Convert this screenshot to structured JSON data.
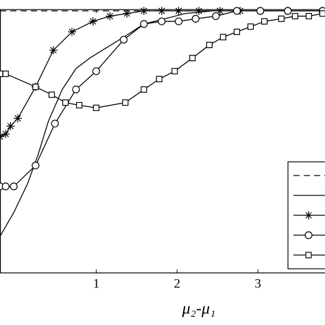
{
  "chart_data": {
    "type": "line",
    "xlabel": "μ₂-μ₁",
    "xlim": [
      -0.19,
      3.83
    ],
    "ylim": [
      0,
      1.005
    ],
    "xticks": [
      1,
      2,
      3
    ],
    "series": [
      {
        "color": "#000000",
        "style": "dashed",
        "marker": "none",
        "x": [
          -0.19,
          3.83
        ],
        "values": [
          1,
          1
        ]
      },
      {
        "color": "#000000",
        "style": "solid",
        "marker": "none",
        "x": [
          -0.19,
          -0.02,
          0.15,
          0.28,
          0.41,
          0.58,
          0.75,
          0.92,
          1.13,
          1.34,
          1.59,
          1.85,
          2.1,
          2.44,
          3.03,
          3.83
        ],
        "values": [
          0.14,
          0.23,
          0.34,
          0.45,
          0.58,
          0.7,
          0.78,
          0.82,
          0.86,
          0.9,
          0.95,
          0.97,
          0.99,
          1.0,
          1.0,
          1.0
        ]
      },
      {
        "color": "#000000",
        "style": "solid",
        "marker": "star",
        "x": [
          -0.19,
          -0.12,
          -0.06,
          0.03,
          0.25,
          0.47,
          0.7,
          0.96,
          1.17,
          1.38,
          1.59,
          1.81,
          2.02,
          2.27,
          2.53,
          2.78,
          3.03,
          3.37,
          3.8
        ],
        "values": [
          0.52,
          0.53,
          0.56,
          0.59,
          0.71,
          0.85,
          0.92,
          0.96,
          0.98,
          0.99,
          1.0,
          1.0,
          1.0,
          1.0,
          1.0,
          1.0,
          1.0,
          1.0,
          1.0
        ]
      },
      {
        "color": "#000000",
        "style": "solid",
        "marker": "circle",
        "x": [
          -0.19,
          -0.12,
          -0.02,
          0.25,
          0.49,
          0.75,
          1.0,
          1.34,
          1.59,
          1.81,
          2.02,
          2.23,
          2.48,
          2.74,
          3.03,
          3.37,
          3.8
        ],
        "values": [
          0.33,
          0.33,
          0.33,
          0.41,
          0.57,
          0.7,
          0.77,
          0.89,
          0.95,
          0.96,
          0.96,
          0.97,
          0.98,
          1.0,
          1.0,
          1.0,
          1.0
        ]
      },
      {
        "color": "#000000",
        "style": "solid",
        "marker": "square",
        "x": [
          -0.19,
          -0.12,
          0.25,
          0.45,
          0.62,
          0.79,
          1.0,
          1.36,
          1.59,
          1.78,
          1.97,
          2.19,
          2.4,
          2.57,
          2.74,
          2.91,
          3.08,
          3.29,
          3.46,
          3.63,
          3.8
        ],
        "values": [
          0.76,
          0.76,
          0.71,
          0.68,
          0.65,
          0.64,
          0.63,
          0.65,
          0.7,
          0.74,
          0.77,
          0.82,
          0.87,
          0.9,
          0.92,
          0.94,
          0.96,
          0.97,
          0.98,
          0.98,
          0.99
        ]
      }
    ]
  }
}
